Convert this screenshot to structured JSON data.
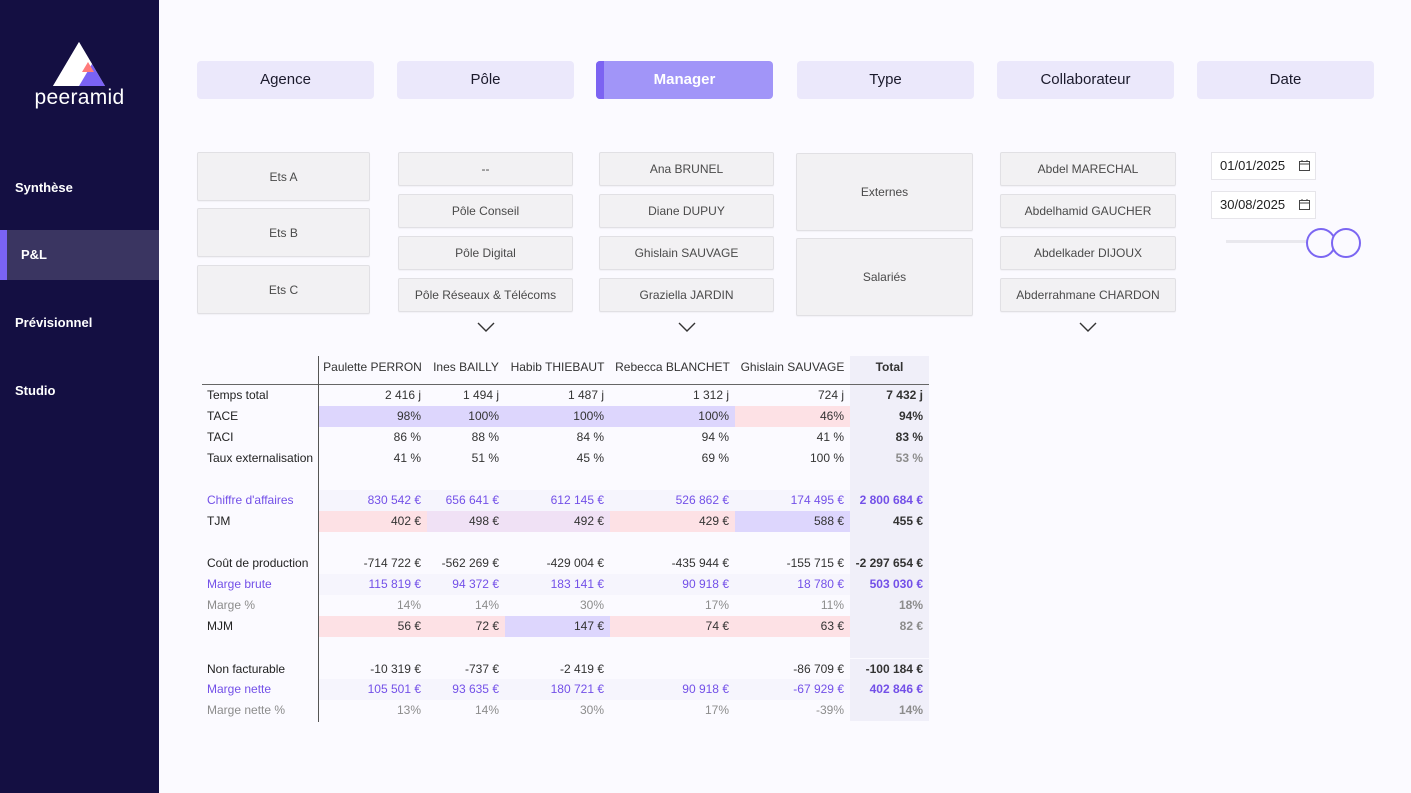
{
  "brand": {
    "name": "peeramid",
    "accent": "#7a63f5",
    "sidebar_bg": "#140f42"
  },
  "nav": {
    "synthese": "Synthèse",
    "pl": "P&L",
    "previsionnel": "Prévisionnel",
    "studio": "Studio"
  },
  "tabs": {
    "agence": "Agence",
    "pole": "Pôle",
    "manager": "Manager",
    "type": "Type",
    "collaborateur": "Collaborateur",
    "date": "Date"
  },
  "slicers": {
    "agence": [
      "Ets A",
      "Ets B",
      "Ets C"
    ],
    "pole": [
      "--",
      "Pôle Conseil",
      "Pôle Digital",
      "Pôle Réseaux & Télécoms"
    ],
    "manager": [
      "Ana BRUNEL",
      "Diane DUPUY",
      "Ghislain SAUVAGE",
      "Graziella JARDIN"
    ],
    "type": [
      "Externes",
      "Salariés"
    ],
    "collaborateur": [
      "Abdel MARECHAL",
      "Abdelhamid GAUCHER",
      "Abdelkader DIJOUX",
      "Abderrahmane CHARDON"
    ]
  },
  "date": {
    "start": "01/01/2025",
    "end": "30/08/2025",
    "slider_start": 0.79,
    "slider_end": 1.0
  },
  "matrix": {
    "columns": [
      "Paulette PERRON",
      "Ines BAILLY",
      "Habib THIEBAUT",
      "Rebecca BLANCHET",
      "Ghislain SAUVAGE",
      "Total"
    ],
    "rows": {
      "temps_total": {
        "label": "Temps total",
        "values": [
          "2 416 j",
          "1 494 j",
          "1 487 j",
          "1 312 j",
          "724 j",
          "7 432 j"
        ]
      },
      "tace": {
        "label": "TACE",
        "values": [
          "98%",
          "100%",
          "100%",
          "100%",
          "46%",
          "94%"
        ]
      },
      "taci": {
        "label": "TACI",
        "values": [
          "86 %",
          "88 %",
          "84 %",
          "94 %",
          "41 %",
          "83 %"
        ]
      },
      "taux_ext": {
        "label": "Taux externalisation",
        "values": [
          "41 %",
          "51 %",
          "45 %",
          "69 %",
          "100 %",
          "53 %"
        ]
      },
      "ca": {
        "label": "Chiffre d'affaires",
        "values": [
          "830 542 €",
          "656 641 €",
          "612 145 €",
          "526 862 €",
          "174 495 €",
          "2 800 684 €"
        ]
      },
      "tjm": {
        "label": "TJM",
        "values": [
          "402 €",
          "498 €",
          "492 €",
          "429 €",
          "588 €",
          "455 €"
        ]
      },
      "cout_prod": {
        "label": "Coût de production",
        "values": [
          "-714 722 €",
          "-562 269 €",
          "-429 004 €",
          "-435 944 €",
          "-155 715 €",
          "-2 297 654 €"
        ]
      },
      "marge_brute": {
        "label": "Marge brute",
        "values": [
          "115 819 €",
          "94 372 €",
          "183 141 €",
          "90 918 €",
          "18 780 €",
          "503 030 €"
        ]
      },
      "marge_pct": {
        "label": "Marge %",
        "values": [
          "14%",
          "14%",
          "30%",
          "17%",
          "11%",
          "18%"
        ]
      },
      "mjm": {
        "label": "MJM",
        "values": [
          "56 €",
          "72 €",
          "147 €",
          "74 €",
          "63 €",
          "82 €"
        ]
      },
      "non_fact": {
        "label": "Non facturable",
        "values": [
          "-10 319 €",
          "-737 €",
          "-2 419 €",
          "",
          "-86 709 €",
          "-100 184 €"
        ]
      },
      "marge_nette": {
        "label": "Marge nette",
        "values": [
          "105 501 €",
          "93 635 €",
          "180 721 €",
          "90 918 €",
          "-67 929 €",
          "402 846 €"
        ]
      },
      "marge_nette_pct": {
        "label": "Marge nette %",
        "values": [
          "13%",
          "14%",
          "30%",
          "17%",
          "-39%",
          "14%"
        ]
      }
    }
  }
}
